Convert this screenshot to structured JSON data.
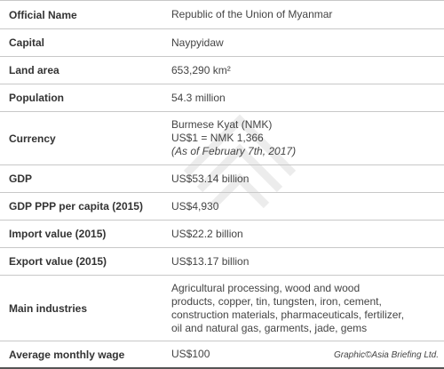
{
  "rows": [
    {
      "label": "Official Name",
      "value": [
        "Republic of the Union of Myanmar"
      ]
    },
    {
      "label": "Capital",
      "value": [
        "Naypyidaw"
      ]
    },
    {
      "label": "Land area",
      "value": [
        "653,290 km²"
      ]
    },
    {
      "label": "Population",
      "value": [
        "54.3 million"
      ]
    },
    {
      "label": "Currency",
      "value": [
        "Burmese Kyat (NMK)",
        "US$1 = NMK 1,366",
        "(As of February 7th, 2017)"
      ]
    },
    {
      "label": "GDP",
      "value": [
        "US$53.14 billion"
      ]
    },
    {
      "label": "GDP PPP per capita (2015)",
      "value": [
        "US$4,930"
      ]
    },
    {
      "label": "Import value (2015)",
      "value": [
        "US$22.2 billion"
      ]
    },
    {
      "label": "Export value (2015)",
      "value": [
        "US$13.17 billion"
      ]
    },
    {
      "label": "Main industries",
      "value": [
        "Agricultural processing, wood and wood",
        "products, copper, tin, tungsten, iron, cement,",
        "construction materials, pharmaceuticals, fertilizer,",
        "oil and natural gas, garments, jade, gems"
      ]
    },
    {
      "label": "Average monthly wage",
      "value": [
        "US$100"
      ]
    }
  ],
  "footer": {
    "credit": "Graphic©Asia Briefing Ltd."
  }
}
